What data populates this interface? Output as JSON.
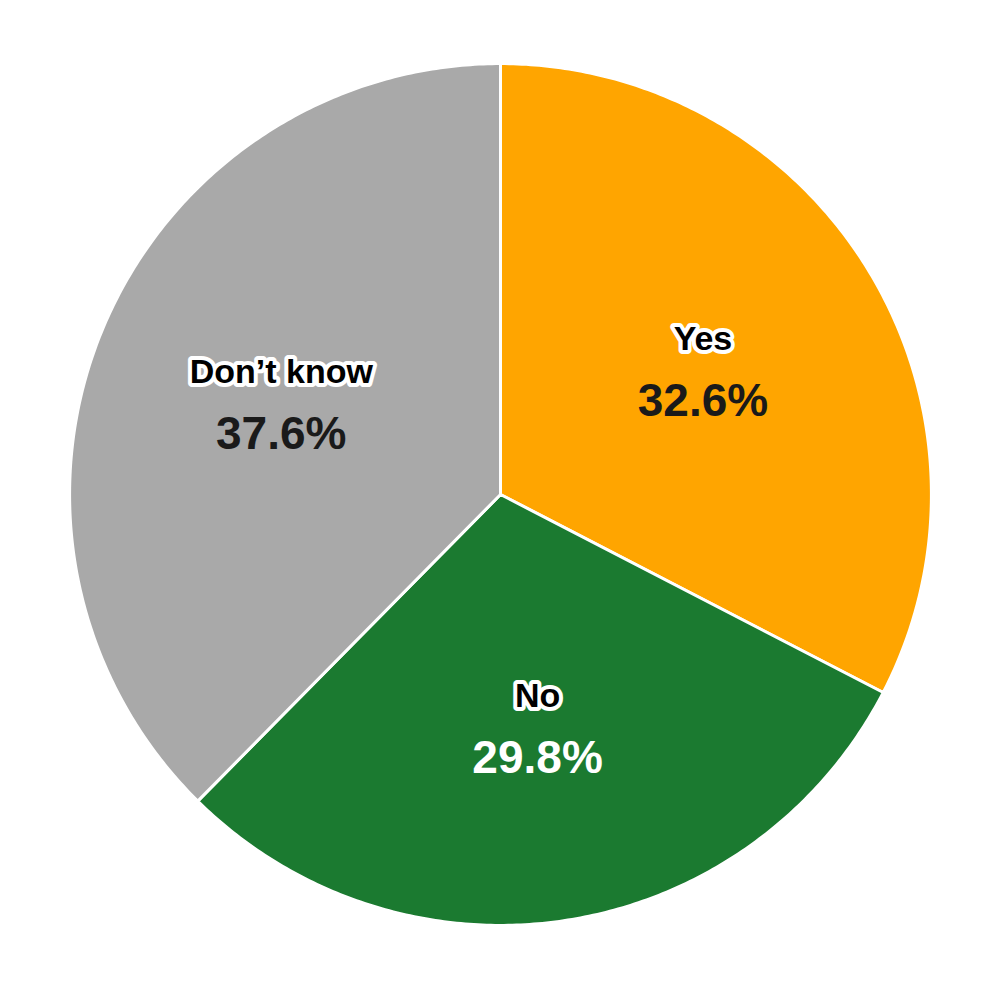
{
  "chart_data": {
    "type": "pie",
    "categories": [
      "Yes",
      "No",
      "Don’t know"
    ],
    "values": [
      32.6,
      29.8,
      37.6
    ],
    "value_labels": [
      "32.6%",
      "29.8%",
      "37.6%"
    ],
    "colors": [
      "#FFA500",
      "#1B7A30",
      "#A9A9A9"
    ],
    "data_labels": true,
    "tick_labels": false,
    "grid": false
  }
}
